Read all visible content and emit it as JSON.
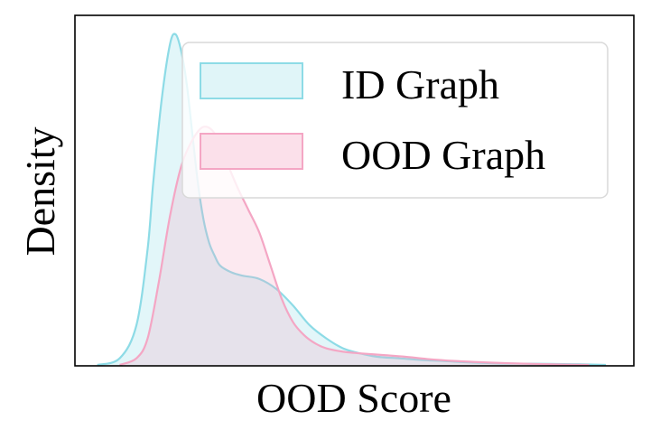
{
  "chart_data": {
    "type": "area",
    "xlabel": "OOD Score",
    "ylabel": "Density",
    "x_ticks_visible": false,
    "y_ticks_visible": false,
    "grid": false,
    "legend_placement": "top-right",
    "xlim": [
      0,
      1
    ],
    "ylim": [
      0,
      1
    ],
    "series": [
      {
        "name": "ID Graph",
        "color": "#8ddbe6",
        "fill": "#e0f5f8",
        "x": [
          0.04,
          0.08,
          0.11,
          0.13,
          0.14,
          0.155,
          0.17,
          0.18,
          0.19,
          0.2,
          0.21,
          0.22,
          0.23,
          0.24,
          0.25,
          0.26,
          0.28,
          0.3,
          0.33,
          0.36,
          0.39,
          0.42,
          0.45,
          0.48,
          0.51,
          0.54,
          0.58,
          0.62,
          0.66,
          0.7,
          0.75,
          0.8,
          0.85,
          0.9,
          0.95
        ],
        "values": [
          0.0,
          0.02,
          0.12,
          0.35,
          0.55,
          0.8,
          0.97,
          1.0,
          0.95,
          0.85,
          0.7,
          0.55,
          0.44,
          0.37,
          0.33,
          0.3,
          0.28,
          0.27,
          0.26,
          0.23,
          0.18,
          0.12,
          0.08,
          0.05,
          0.035,
          0.025,
          0.02,
          0.015,
          0.012,
          0.008,
          0.005,
          0.004,
          0.003,
          0.002,
          0.0
        ]
      },
      {
        "name": "OOD Graph",
        "color": "#f4a6c4",
        "fill": "#fbe0ea",
        "x": [
          0.08,
          0.11,
          0.13,
          0.15,
          0.17,
          0.19,
          0.21,
          0.23,
          0.25,
          0.27,
          0.29,
          0.31,
          0.33,
          0.35,
          0.37,
          0.39,
          0.41,
          0.43,
          0.45,
          0.48,
          0.51,
          0.55,
          0.59,
          0.63,
          0.68,
          0.73,
          0.78,
          0.85,
          0.92
        ],
        "values": [
          0.0,
          0.02,
          0.08,
          0.25,
          0.45,
          0.6,
          0.68,
          0.72,
          0.7,
          0.62,
          0.54,
          0.47,
          0.4,
          0.3,
          0.2,
          0.13,
          0.09,
          0.065,
          0.05,
          0.04,
          0.035,
          0.03,
          0.025,
          0.018,
          0.012,
          0.008,
          0.005,
          0.002,
          0.0
        ]
      }
    ]
  }
}
